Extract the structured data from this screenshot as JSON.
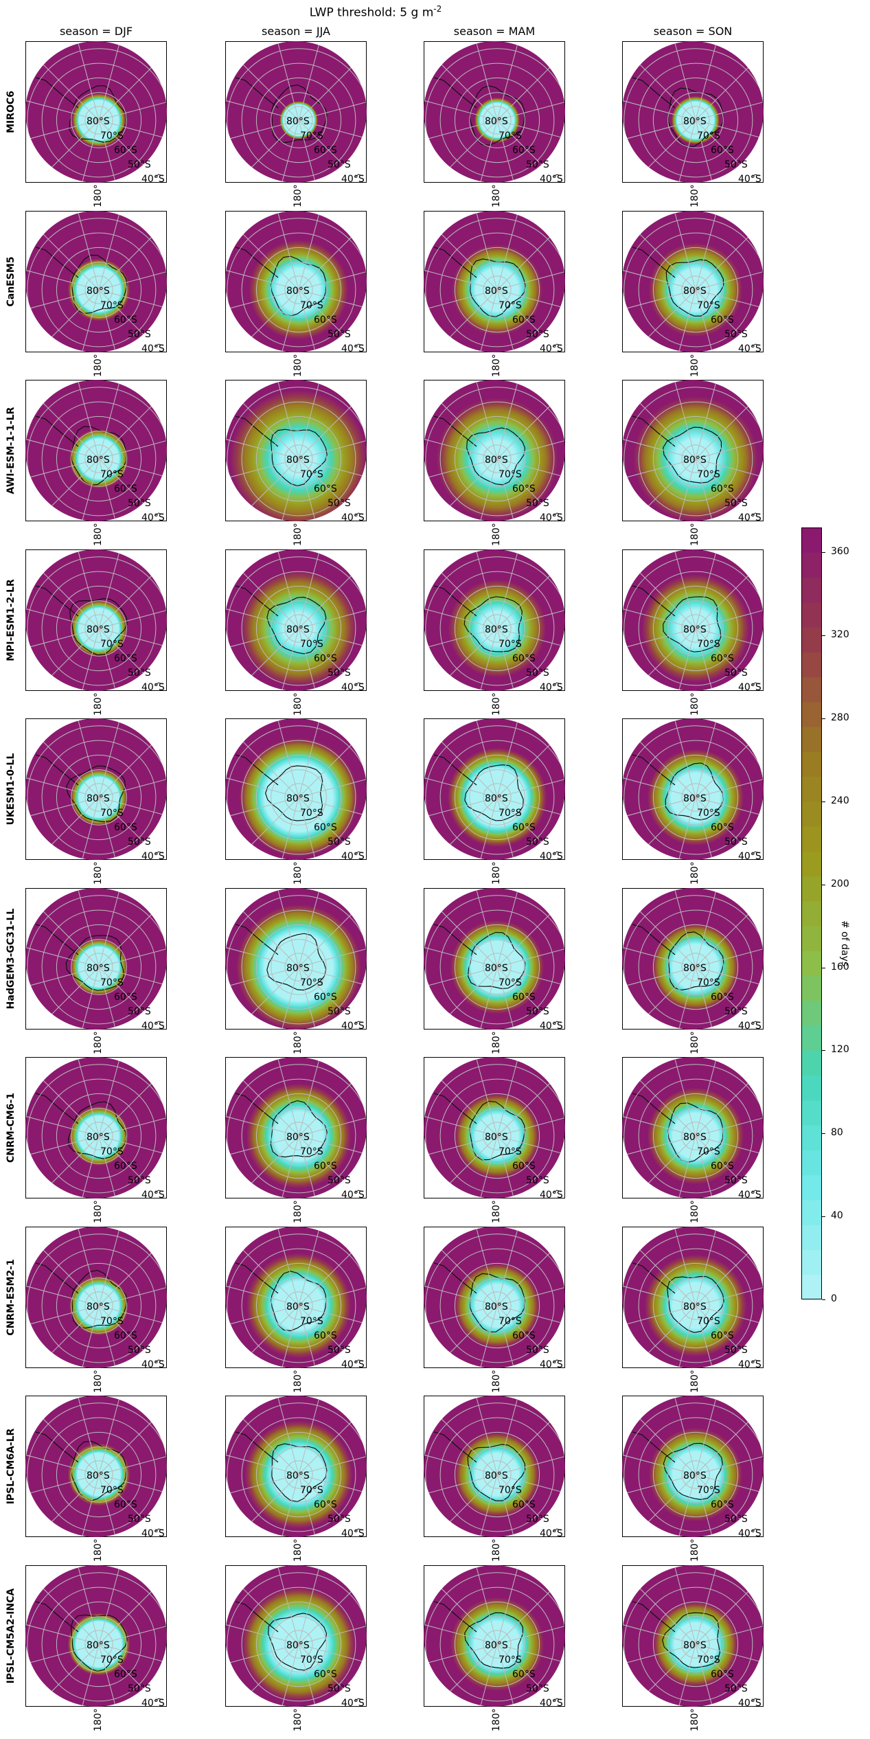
{
  "figure": {
    "title": "LWP threshold: 5 g m$^{-2}$"
  },
  "colors": {
    "ocean_high": "#8b1a6f",
    "ice_low": "#aef2f5",
    "colormap": [
      "#aef2f5",
      "#6fe8e8",
      "#47d6b8",
      "#8bbf4a",
      "#9c9a1e",
      "#9a7a24",
      "#963e48",
      "#8b1a6f"
    ]
  },
  "chart_data": {
    "type": "heatmap",
    "description_type": "polar stereographic maps",
    "columns": [
      "season = DJF",
      "season = JJA",
      "season = MAM",
      "season = SON"
    ],
    "rows": [
      "MIROC6",
      "CanESM5",
      "AWI-ESM-1-1-LR",
      "MPI-ESM1-2-LR",
      "UKESM1-0-LL",
      "HadGEM3-GC31-LL",
      "CNRM-CM6-1",
      "CNRM-ESM2-1",
      "IPSL-CM6A-LR",
      "IPSL-CM5A2-INCA"
    ],
    "lat_labels": [
      "80°S",
      "70°S",
      "60°S",
      "50°S",
      "40°S"
    ],
    "lon_label": "180°",
    "colorbar": {
      "label": "# of days",
      "ticks": [
        "0",
        "40",
        "80",
        "120",
        "160",
        "200",
        "240",
        "280",
        "320",
        "360"
      ],
      "range": [
        0,
        372
      ]
    },
    "transition_width": [
      [
        0.1,
        0.05,
        0.08,
        0.08
      ],
      [
        0.14,
        0.4,
        0.34,
        0.36
      ],
      [
        0.14,
        0.8,
        0.6,
        0.6
      ],
      [
        0.12,
        0.6,
        0.45,
        0.5
      ],
      [
        0.12,
        0.36,
        0.3,
        0.34
      ],
      [
        0.12,
        0.4,
        0.3,
        0.3
      ],
      [
        0.14,
        0.4,
        0.3,
        0.36
      ],
      [
        0.14,
        0.4,
        0.3,
        0.4
      ],
      [
        0.14,
        0.4,
        0.3,
        0.34
      ],
      [
        0.12,
        0.42,
        0.34,
        0.3
      ]
    ],
    "ice_extent": [
      [
        0.28,
        0.22,
        0.24,
        0.26
      ],
      [
        0.3,
        0.3,
        0.3,
        0.3
      ],
      [
        0.28,
        0.24,
        0.26,
        0.28
      ],
      [
        0.28,
        0.22,
        0.24,
        0.26
      ],
      [
        0.28,
        0.48,
        0.4,
        0.34
      ],
      [
        0.28,
        0.48,
        0.36,
        0.32
      ],
      [
        0.28,
        0.34,
        0.3,
        0.32
      ],
      [
        0.28,
        0.34,
        0.3,
        0.32
      ],
      [
        0.3,
        0.36,
        0.3,
        0.32
      ],
      [
        0.32,
        0.38,
        0.32,
        0.3
      ]
    ]
  }
}
